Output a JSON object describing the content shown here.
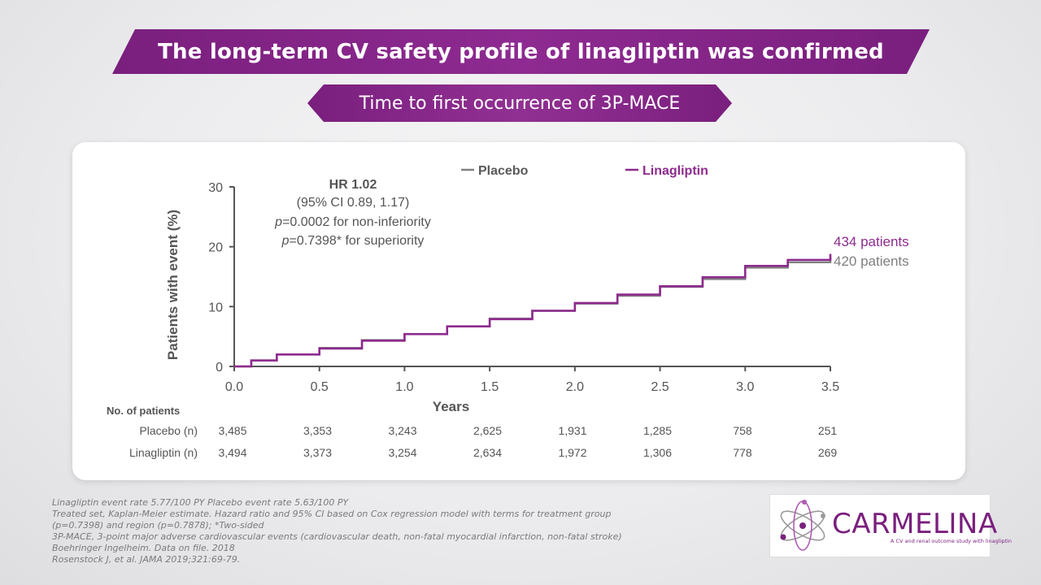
{
  "title": "The long-term CV safety profile of linagliptin was confirmed",
  "subtitle": "Time to first occurrence of 3P-MACE",
  "colors": {
    "placebo": "#808080",
    "linagliptin": "#8e2a8e",
    "banner": "#862689"
  },
  "chart_data": {
    "type": "line",
    "xlabel": "Years",
    "ylabel": "Patients with event (%)",
    "xlim": [
      0,
      3.5
    ],
    "ylim": [
      0,
      30
    ],
    "x_ticks": [
      "0.0",
      "0.5",
      "1.0",
      "1.5",
      "2.0",
      "2.5",
      "3.0",
      "3.5"
    ],
    "y_ticks": [
      "0",
      "10",
      "20",
      "30"
    ],
    "legend_position": "top",
    "stats": {
      "hr": "HR 1.02",
      "ci": "(95% CI 0.89, 1.17)",
      "p1_label": "p",
      "p1_text": "=0.0002 for non-inferiority",
      "p2_label": "p",
      "p2_text": "=0.7398* for superiority"
    },
    "series": [
      {
        "name": "Placebo",
        "end_label": "420 patients",
        "color": "#808080",
        "x": [
          0,
          0.1,
          0.25,
          0.5,
          0.75,
          1.0,
          1.25,
          1.5,
          1.75,
          2.0,
          2.25,
          2.5,
          2.75,
          3.0,
          3.25,
          3.5
        ],
        "y": [
          0,
          1.0,
          2.0,
          3.1,
          4.4,
          5.4,
          6.7,
          8.0,
          9.3,
          10.5,
          11.8,
          13.3,
          14.6,
          16.5,
          17.4,
          18.3
        ]
      },
      {
        "name": "Linagliptin",
        "end_label": "434 patients",
        "color": "#8e2a8e",
        "x": [
          0,
          0.1,
          0.25,
          0.5,
          0.75,
          1.0,
          1.25,
          1.5,
          1.75,
          2.0,
          2.25,
          2.5,
          2.75,
          3.0,
          3.25,
          3.5
        ],
        "y": [
          0,
          1.0,
          2.0,
          3.0,
          4.3,
          5.4,
          6.7,
          7.9,
          9.3,
          10.6,
          12.0,
          13.4,
          14.9,
          16.8,
          17.8,
          18.8
        ]
      }
    ],
    "at_risk": {
      "header": "No. of patients",
      "rows": [
        {
          "label": "Placebo (n)",
          "values": [
            "3,485",
            "3,353",
            "3,243",
            "2,625",
            "1,931",
            "1,285",
            "758",
            "251"
          ]
        },
        {
          "label": "Linagliptin (n)",
          "values": [
            "3,494",
            "3,373",
            "3,254",
            "2,634",
            "1,972",
            "1,306",
            "778",
            "269"
          ]
        }
      ]
    }
  },
  "footnotes": [
    "Linagliptin event rate 5.77/100 PY Placebo event rate 5.63/100 PY",
    "Treated set, Kaplan-Meier estimate. Hazard ratio and 95% CI based on Cox regression model with terms for treatment group",
    "(p=0.7398) and region (p=0.7878); *Two-sided",
    "3P-MACE, 3-point major adverse cardiovascular events (cardiovascular death, non-fatal myocardial infarction, non-fatal stroke)",
    "Boehringer Ingelheim. Data on file. 2018",
    "Rosenstock J, et al. JAMA 2019;321:69-79."
  ],
  "logo": {
    "name": "CARMELINA",
    "tagline": "A CV and renal outcome study with linagliptin",
    "icon": "atom-icon"
  }
}
